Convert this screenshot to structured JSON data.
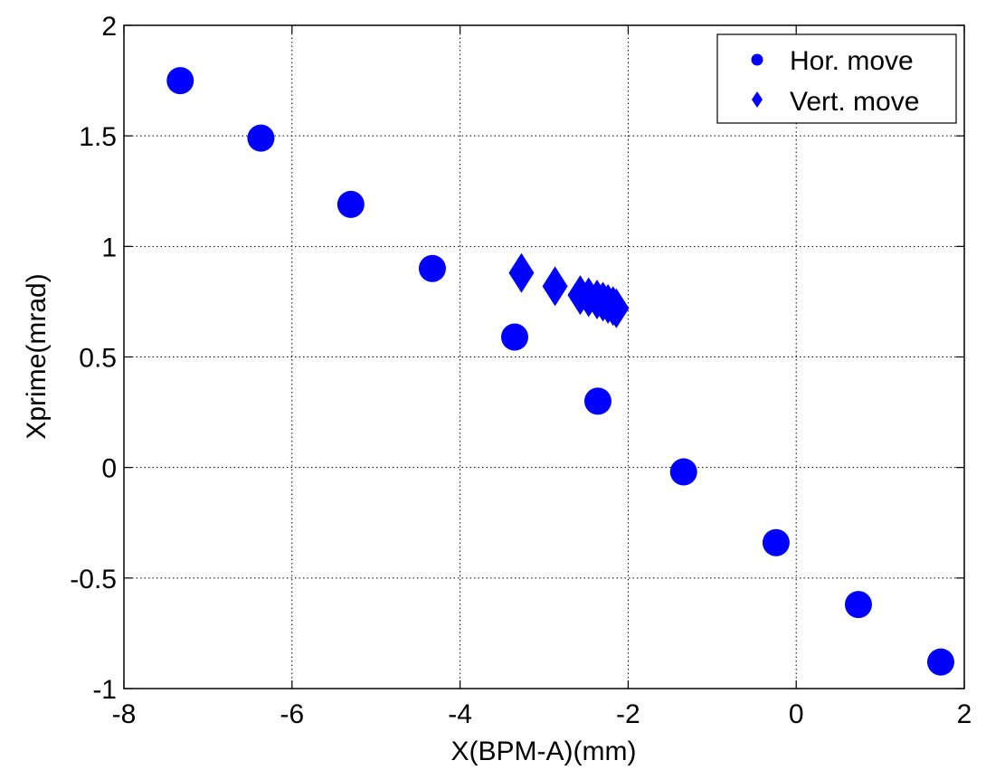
{
  "chart_data": {
    "type": "scatter",
    "xlabel": "X(BPM-A)(mm)",
    "ylabel": "Xprime(mrad)",
    "xlim": [
      -8,
      2
    ],
    "ylim": [
      -1,
      2
    ],
    "xticks": [
      -8,
      -6,
      -4,
      -2,
      0,
      2
    ],
    "yticks": [
      -1,
      -0.5,
      0,
      0.5,
      1,
      1.5,
      2
    ],
    "xtick_labels": [
      "-8",
      "-6",
      "-4",
      "-2",
      "0",
      "2"
    ],
    "ytick_labels": [
      "-1",
      "-0.5",
      "0",
      "0.5",
      "1",
      "1.5",
      "2"
    ],
    "grid": true,
    "legend_position": "top-right",
    "series": [
      {
        "name": "Hor. move",
        "marker": "circle",
        "color": "#0000ff",
        "points": [
          [
            -7.33,
            1.75
          ],
          [
            -6.37,
            1.49
          ],
          [
            -5.3,
            1.19
          ],
          [
            -4.33,
            0.9
          ],
          [
            -3.35,
            0.59
          ],
          [
            -2.36,
            0.3
          ],
          [
            -1.34,
            -0.02
          ],
          [
            -0.24,
            -0.34
          ],
          [
            0.74,
            -0.62
          ],
          [
            1.72,
            -0.88
          ]
        ]
      },
      {
        "name": "Vert. move",
        "marker": "diamond",
        "color": "#0000ff",
        "points": [
          [
            -3.27,
            0.88
          ],
          [
            -2.87,
            0.82
          ],
          [
            -2.57,
            0.78
          ],
          [
            -2.47,
            0.77
          ],
          [
            -2.37,
            0.76
          ],
          [
            -2.3,
            0.75
          ],
          [
            -2.24,
            0.74
          ],
          [
            -2.18,
            0.73
          ],
          [
            -2.14,
            0.72
          ]
        ]
      }
    ]
  }
}
